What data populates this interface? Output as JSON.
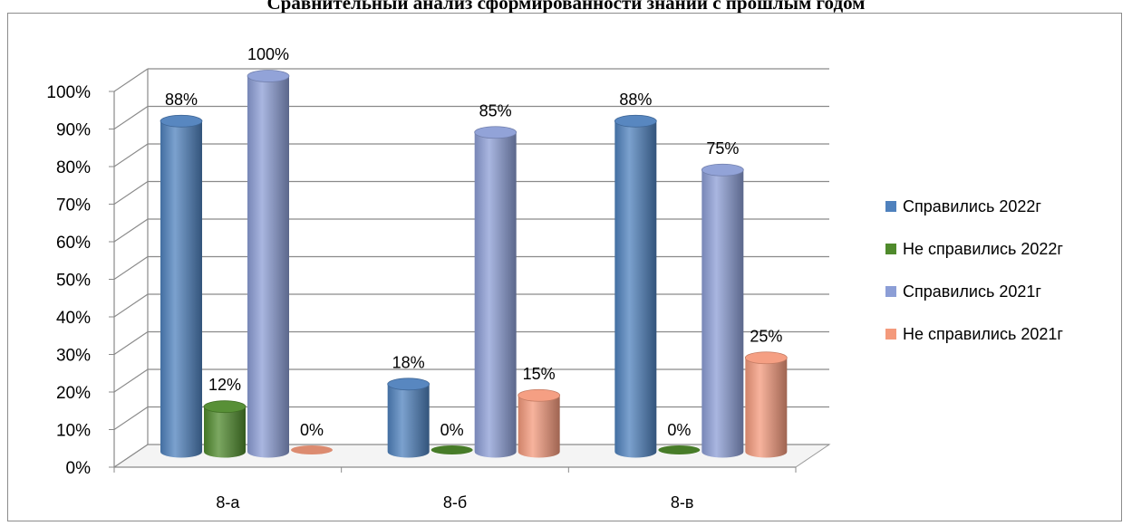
{
  "chart_data": {
    "type": "bar",
    "title": "Сравнительный анализ сформированности знаний с прошлым годом",
    "categories": [
      "8-а",
      "8-б",
      "8-в"
    ],
    "series": [
      {
        "name": "Справились 2022г",
        "values": [
          88,
          18,
          88
        ],
        "labels": [
          "88%",
          "18%",
          "88%"
        ],
        "color": "#4f81bd"
      },
      {
        "name": "Не справились 2022г",
        "values": [
          12,
          0,
          0
        ],
        "labels": [
          "12%",
          "0%",
          "0%"
        ],
        "color": "#4f8a2c"
      },
      {
        "name": "Справились 2021г",
        "values": [
          100,
          85,
          75
        ],
        "labels": [
          "100%",
          "85%",
          "75%"
        ],
        "color": "#8c9ed6"
      },
      {
        "name": "Не справились 2021г",
        "values": [
          0,
          15,
          25
        ],
        "labels": [
          "0%",
          "15%",
          "25%"
        ],
        "color": "#f49a7c"
      }
    ],
    "y_ticks": [
      "0%",
      "10%",
      "20%",
      "30%",
      "40%",
      "50%",
      "60%",
      "70%",
      "80%",
      "90%",
      "100%"
    ],
    "ylim": [
      0,
      100
    ],
    "grid": true,
    "legend_position": "right",
    "bar_style": "3d-cylinder"
  }
}
